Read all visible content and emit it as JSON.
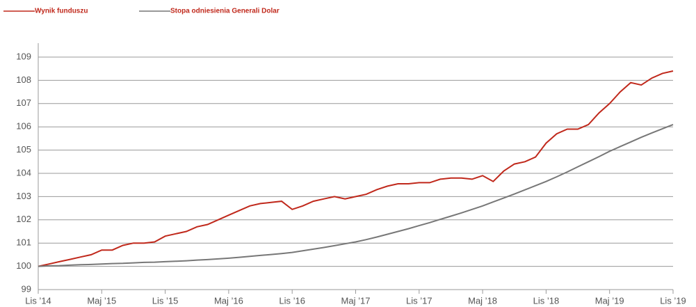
{
  "chart_data": {
    "type": "line",
    "categories": [
      "Lis ’14",
      null,
      null,
      null,
      null,
      null,
      "Maj ’15",
      null,
      null,
      null,
      null,
      null,
      "Lis ’15",
      null,
      null,
      null,
      null,
      null,
      "Maj ’16",
      null,
      null,
      null,
      null,
      null,
      "Lis ’16",
      null,
      null,
      null,
      null,
      null,
      "Maj ’17",
      null,
      null,
      null,
      null,
      null,
      "Lis ’17",
      null,
      null,
      null,
      null,
      null,
      "Maj ’18",
      null,
      null,
      null,
      null,
      null,
      "Lis ’18",
      null,
      null,
      null,
      null,
      null,
      "Maj ’19",
      null,
      null,
      null,
      null,
      null,
      "Lis ’19"
    ],
    "series": [
      {
        "name": "Wynik funduszu",
        "color": "#c0281b",
        "values": [
          100.0,
          100.1,
          100.2,
          100.3,
          100.4,
          100.5,
          100.7,
          100.7,
          100.9,
          101.0,
          101.0,
          101.05,
          101.3,
          101.4,
          101.5,
          101.7,
          101.8,
          102.0,
          102.2,
          102.4,
          102.6,
          102.7,
          102.75,
          102.8,
          102.45,
          102.6,
          102.8,
          102.9,
          103.0,
          102.9,
          103.0,
          103.1,
          103.3,
          103.45,
          103.55,
          103.55,
          103.6,
          103.6,
          103.75,
          103.8,
          103.8,
          103.75,
          103.9,
          103.65,
          104.1,
          104.4,
          104.5,
          104.7,
          105.3,
          105.7,
          105.9,
          105.9,
          106.1,
          106.6,
          107.0,
          107.5,
          107.9,
          107.8,
          108.1,
          108.3,
          108.4
        ]
      },
      {
        "name": "Stopa odniesienia Generali Dolar",
        "color": "#777777",
        "values": [
          100.0,
          100.02,
          100.03,
          100.05,
          100.07,
          100.08,
          100.1,
          100.12,
          100.13,
          100.15,
          100.17,
          100.18,
          100.2,
          100.22,
          100.24,
          100.27,
          100.29,
          100.32,
          100.35,
          100.39,
          100.43,
          100.47,
          100.51,
          100.55,
          100.6,
          100.67,
          100.74,
          100.81,
          100.89,
          100.97,
          101.05,
          101.15,
          101.26,
          101.38,
          101.5,
          101.62,
          101.75,
          101.88,
          102.02,
          102.16,
          102.3,
          102.45,
          102.6,
          102.77,
          102.94,
          103.11,
          103.29,
          103.47,
          103.65,
          103.85,
          104.06,
          104.28,
          104.5,
          104.72,
          104.95,
          105.15,
          105.35,
          105.55,
          105.74,
          105.92,
          106.1
        ]
      }
    ],
    "ylim": [
      99,
      109.6
    ],
    "yticks": [
      99,
      100,
      101,
      102,
      103,
      104,
      105,
      106,
      107,
      108,
      109
    ],
    "grid": true
  }
}
